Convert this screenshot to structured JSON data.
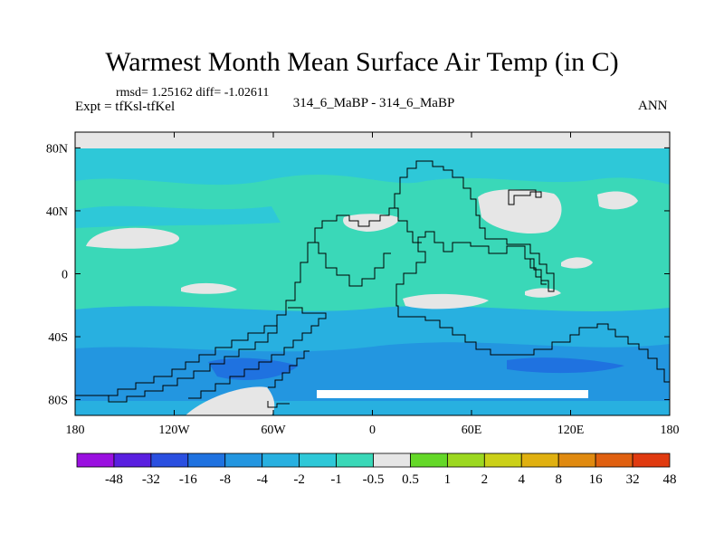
{
  "header": {
    "title": "Warmest Month Mean Surface Air Temp (in C)",
    "stats": "rmsd= 1.25162  diff= -1.02611",
    "experiment": "Expt = tfKsl-tfKel",
    "center_label": "314_6_MaBP - 314_6_MaBP",
    "period": "ANN"
  },
  "chart_data": {
    "type": "heatmap",
    "title": "Warmest Month Mean Surface Air Temp (in C)",
    "subtitle": "314_6_MaBP - 314_6_MaBP",
    "xlim": [
      -180,
      180
    ],
    "ylim": [
      -90,
      90
    ],
    "x_ticks": [
      {
        "value": -180,
        "label": "180"
      },
      {
        "value": -120,
        "label": "120W"
      },
      {
        "value": -60,
        "label": "60W"
      },
      {
        "value": 0,
        "label": "0"
      },
      {
        "value": 60,
        "label": "60E"
      },
      {
        "value": 120,
        "label": "120E"
      },
      {
        "value": 180,
        "label": "180"
      }
    ],
    "y_ticks": [
      {
        "value": 80,
        "label": "80N"
      },
      {
        "value": 40,
        "label": "40N"
      },
      {
        "value": 0,
        "label": "0"
      },
      {
        "value": -40,
        "label": "40S"
      },
      {
        "value": -80,
        "label": "80S"
      }
    ],
    "colorbar": {
      "labels": [
        "-48",
        "-32",
        "-16",
        "-8",
        "-4",
        "-2",
        "-1",
        "-0.5",
        "0.5",
        "1",
        "2",
        "4",
        "8",
        "16",
        "32",
        "48"
      ],
      "colors": [
        "#9a10e0",
        "#5a1fe0",
        "#2a4fe0",
        "#1f72e0",
        "#2396e0",
        "#28b0e0",
        "#2ec8d8",
        "#3ad8b8",
        "#e6e6e6",
        "#64d828",
        "#9cd820",
        "#cbd018",
        "#e0b010",
        "#e08a10",
        "#e06010",
        "#e03a10"
      ]
    },
    "field_bands": [
      {
        "lat_from": 90,
        "lat_to": 73,
        "value": 0,
        "label": "no data / ~0"
      },
      {
        "lat_from": 73,
        "lat_to": 52,
        "value": -1.5
      },
      {
        "lat_from": 52,
        "lat_to": -28,
        "value": -0.8
      },
      {
        "lat_from": -28,
        "lat_to": -55,
        "value": -2.5
      },
      {
        "lat_from": -55,
        "lat_to": -80,
        "value": -5
      },
      {
        "lat_from": -80,
        "lat_to": -90,
        "value": -3
      }
    ]
  }
}
